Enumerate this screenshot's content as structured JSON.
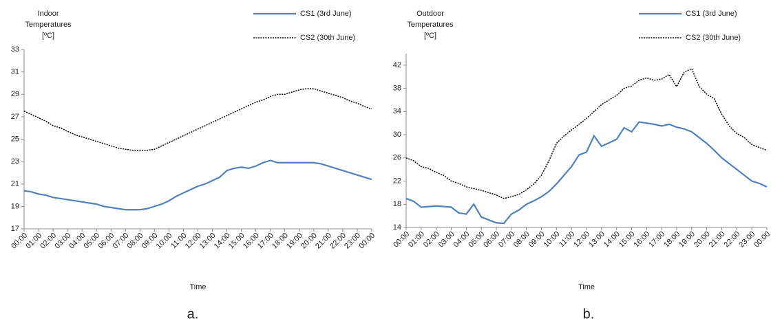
{
  "chart_data": [
    {
      "type": "line",
      "caption": "a.",
      "ylabel": [
        "Indoor",
        "Temperatures",
        "[ºC]"
      ],
      "xlabel": "Time",
      "x": [
        0,
        0.5,
        1,
        1.5,
        2,
        2.5,
        3,
        3.5,
        4,
        4.5,
        5,
        5.5,
        6,
        6.5,
        7,
        7.5,
        8,
        8.5,
        9,
        9.5,
        10,
        10.5,
        11,
        11.5,
        12,
        12.5,
        13,
        13.5,
        14,
        14.5,
        15,
        15.5,
        16,
        16.5,
        17,
        17.5,
        18,
        18.5,
        19,
        19.5,
        20,
        20.5,
        21,
        21.5,
        22,
        22.5,
        23,
        23.5,
        24
      ],
      "series": [
        {
          "name": "CS1 (3rd June)",
          "color": "#4f81bd",
          "dash": "solid",
          "values": [
            20.4,
            20.3,
            20.1,
            20.0,
            19.8,
            19.7,
            19.6,
            19.5,
            19.4,
            19.3,
            19.2,
            19.0,
            18.9,
            18.8,
            18.7,
            18.7,
            18.7,
            18.8,
            19.0,
            19.2,
            19.5,
            19.9,
            20.2,
            20.5,
            20.8,
            21.0,
            21.3,
            21.6,
            22.2,
            22.4,
            22.5,
            22.4,
            22.6,
            22.9,
            23.1,
            22.9,
            22.9,
            22.9,
            22.9,
            22.9,
            22.9,
            22.8,
            22.6,
            22.4,
            22.2,
            22.0,
            21.8,
            21.6,
            21.4
          ]
        },
        {
          "name": "CS2 (30th June)",
          "color": "#000000",
          "dash": "dotted",
          "values": [
            27.5,
            27.2,
            26.9,
            26.6,
            26.2,
            26.0,
            25.7,
            25.4,
            25.2,
            25.0,
            24.8,
            24.6,
            24.4,
            24.2,
            24.1,
            24.0,
            24.0,
            24.0,
            24.1,
            24.4,
            24.7,
            25.0,
            25.3,
            25.6,
            25.9,
            26.2,
            26.5,
            26.8,
            27.1,
            27.4,
            27.7,
            28.0,
            28.3,
            28.5,
            28.8,
            29.0,
            29.0,
            29.2,
            29.4,
            29.5,
            29.5,
            29.3,
            29.1,
            28.9,
            28.7,
            28.4,
            28.2,
            27.9,
            27.7
          ]
        }
      ],
      "xlim": [
        0,
        24
      ],
      "xticks": [
        {
          "value": 0,
          "label": "00:00"
        },
        {
          "value": 1,
          "label": "01:00"
        },
        {
          "value": 2,
          "label": "02:00"
        },
        {
          "value": 3,
          "label": "03:00"
        },
        {
          "value": 4,
          "label": "04:00"
        },
        {
          "value": 5,
          "label": "05:00"
        },
        {
          "value": 6,
          "label": "06:00"
        },
        {
          "value": 7,
          "label": "07:00"
        },
        {
          "value": 8,
          "label": "08:00"
        },
        {
          "value": 9,
          "label": "09:00"
        },
        {
          "value": 10,
          "label": "10:00"
        },
        {
          "value": 11,
          "label": "11:00"
        },
        {
          "value": 12,
          "label": "12:00"
        },
        {
          "value": 13,
          "label": "13:00"
        },
        {
          "value": 14,
          "label": "14:00"
        },
        {
          "value": 15,
          "label": "15:00"
        },
        {
          "value": 16,
          "label": "16:00"
        },
        {
          "value": 17,
          "label": "17:00"
        },
        {
          "value": 18,
          "label": "18:00"
        },
        {
          "value": 19,
          "label": "19:00"
        },
        {
          "value": 20,
          "label": "20:00"
        },
        {
          "value": 21,
          "label": "21:00"
        },
        {
          "value": 22,
          "label": "22:00"
        },
        {
          "value": 23,
          "label": "23:00"
        },
        {
          "value": 24,
          "label": "00:00"
        }
      ],
      "ylim": [
        17,
        33
      ],
      "yticks": [
        17,
        19,
        21,
        23,
        25,
        27,
        29,
        31,
        33
      ],
      "grid": false
    },
    {
      "type": "line",
      "caption": "b.",
      "ylabel": [
        "Outdoor",
        "Temperatures",
        "[ºC]"
      ],
      "xlabel": "Time",
      "x": [
        0,
        0.5,
        1,
        1.5,
        2,
        2.5,
        3,
        3.5,
        4,
        4.5,
        5,
        5.5,
        6,
        6.5,
        7,
        7.5,
        8,
        8.5,
        9,
        9.5,
        10,
        10.5,
        11,
        11.5,
        12,
        12.5,
        13,
        13.5,
        14,
        14.5,
        15,
        15.5,
        16,
        16.5,
        17,
        17.5,
        18,
        18.5,
        19,
        19.5,
        20,
        20.5,
        21,
        21.5,
        22,
        22.5,
        23,
        23.5,
        24
      ],
      "series": [
        {
          "name": "CS1 (3rd June)",
          "color": "#4f81bd",
          "dash": "solid",
          "values": [
            19.0,
            18.5,
            17.5,
            17.6,
            17.7,
            17.6,
            17.5,
            16.5,
            16.3,
            18.0,
            15.8,
            15.3,
            14.8,
            14.7,
            16.3,
            17.0,
            18.0,
            18.6,
            19.3,
            20.2,
            21.5,
            23.0,
            24.5,
            26.5,
            27.0,
            29.8,
            28.0,
            28.6,
            29.2,
            31.2,
            30.5,
            32.2,
            32.0,
            31.8,
            31.5,
            31.8,
            31.3,
            31.0,
            30.5,
            29.5,
            28.5,
            27.3,
            26.0,
            25.0,
            24.0,
            23.0,
            22.0,
            21.6,
            21.0
          ]
        },
        {
          "name": "CS2 (30th June)",
          "color": "#000000",
          "dash": "dotted",
          "values": [
            26.0,
            25.5,
            24.5,
            24.2,
            23.5,
            23.0,
            22.0,
            21.6,
            21.0,
            20.7,
            20.4,
            20.0,
            19.6,
            19.0,
            19.3,
            19.7,
            20.5,
            21.5,
            23.0,
            25.5,
            28.5,
            29.8,
            30.8,
            31.8,
            32.8,
            34.0,
            35.2,
            36.0,
            36.8,
            38.0,
            38.4,
            39.4,
            39.8,
            39.4,
            39.6,
            40.4,
            38.3,
            40.8,
            41.4,
            38.3,
            37.0,
            36.2,
            33.5,
            31.5,
            30.2,
            29.5,
            28.3,
            27.8,
            27.3
          ]
        }
      ],
      "xlim": [
        0,
        24
      ],
      "xticks": [
        {
          "value": 0,
          "label": "00:00"
        },
        {
          "value": 1,
          "label": "01:00"
        },
        {
          "value": 2,
          "label": "02:00"
        },
        {
          "value": 3,
          "label": "03:00"
        },
        {
          "value": 4,
          "label": "04:00"
        },
        {
          "value": 5,
          "label": "05:00"
        },
        {
          "value": 6,
          "label": "06:00"
        },
        {
          "value": 7,
          "label": "07:00"
        },
        {
          "value": 8,
          "label": "08:00"
        },
        {
          "value": 9,
          "label": "09:00"
        },
        {
          "value": 10,
          "label": "10:00"
        },
        {
          "value": 11,
          "label": "11:00"
        },
        {
          "value": 12,
          "label": "12:00"
        },
        {
          "value": 13,
          "label": "13:00"
        },
        {
          "value": 14,
          "label": "14:00"
        },
        {
          "value": 15,
          "label": "15:00"
        },
        {
          "value": 16,
          "label": "16:00"
        },
        {
          "value": 17,
          "label": "17:00"
        },
        {
          "value": 18,
          "label": "18:00"
        },
        {
          "value": 19,
          "label": "19:00"
        },
        {
          "value": 20,
          "label": "20:00"
        },
        {
          "value": 21,
          "label": "21:00"
        },
        {
          "value": 22,
          "label": "22:00"
        },
        {
          "value": 23,
          "label": "23:00"
        },
        {
          "value": 24,
          "label": "00:00"
        }
      ],
      "ylim": [
        14,
        44
      ],
      "yticks": [
        14,
        18,
        22,
        26,
        30,
        34,
        38,
        42
      ],
      "grid": false
    }
  ]
}
